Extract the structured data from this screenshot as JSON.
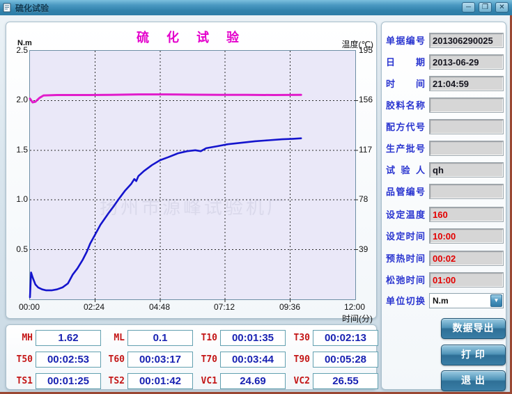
{
  "window": {
    "title": "硫化试验",
    "controls": {
      "minimize": "─",
      "maximize": "❐",
      "close": "✕"
    }
  },
  "chart": {
    "title": "硫 化 试 验",
    "left_axis_unit": "N.m",
    "right_axis_unit": "温度(℃)",
    "x_axis_title": "时间(分)",
    "watermark": "扬州市源峰试验机厂"
  },
  "chart_data": {
    "type": "line",
    "title": "硫化试验",
    "x_range": [
      0,
      12
    ],
    "left_ylim": [
      0,
      2.5
    ],
    "right_ylim": [
      0,
      195
    ],
    "x_ticks": [
      "00:00",
      "02:24",
      "04:48",
      "07:12",
      "09:36",
      "12:00"
    ],
    "left_ticks": [
      "2.5",
      "2.0",
      "1.5",
      "1.0",
      "0.5"
    ],
    "right_ticks": [
      "195",
      "156",
      "117",
      "78",
      "39"
    ],
    "grid": {
      "vertical_minutes": [
        2.4,
        4.8,
        7.2,
        9.6
      ],
      "horizontal_left_values": [
        2.0,
        1.5,
        1.0,
        0.5
      ]
    },
    "series": [
      {
        "name": "torque",
        "unit": "N.m",
        "axis": "left",
        "color": "#1414cd",
        "width": 2.6,
        "points": [
          [
            0,
            0.02
          ],
          [
            0.04,
            0.27
          ],
          [
            0.1,
            0.22
          ],
          [
            0.2,
            0.15
          ],
          [
            0.3,
            0.12
          ],
          [
            0.45,
            0.1
          ],
          [
            0.6,
            0.09
          ],
          [
            0.8,
            0.09
          ],
          [
            1.0,
            0.1
          ],
          [
            1.2,
            0.12
          ],
          [
            1.4,
            0.16
          ],
          [
            1.58,
            0.25
          ],
          [
            1.75,
            0.31
          ],
          [
            1.95,
            0.4
          ],
          [
            2.1,
            0.48
          ],
          [
            2.22,
            0.56
          ],
          [
            2.4,
            0.65
          ],
          [
            2.6,
            0.75
          ],
          [
            2.88,
            0.86
          ],
          [
            3.1,
            0.94
          ],
          [
            3.28,
            1.01
          ],
          [
            3.5,
            1.09
          ],
          [
            3.73,
            1.16
          ],
          [
            3.85,
            1.21
          ],
          [
            3.92,
            1.19
          ],
          [
            4.0,
            1.24
          ],
          [
            4.2,
            1.29
          ],
          [
            4.5,
            1.35
          ],
          [
            4.8,
            1.4
          ],
          [
            5.1,
            1.43
          ],
          [
            5.47,
            1.47
          ],
          [
            5.8,
            1.49
          ],
          [
            6.1,
            1.5
          ],
          [
            6.3,
            1.49
          ],
          [
            6.5,
            1.52
          ],
          [
            6.9,
            1.54
          ],
          [
            7.3,
            1.56
          ],
          [
            7.8,
            1.575
          ],
          [
            8.3,
            1.59
          ],
          [
            8.8,
            1.6
          ],
          [
            9.3,
            1.61
          ],
          [
            9.7,
            1.615
          ],
          [
            10,
            1.62
          ]
        ]
      },
      {
        "name": "temperature",
        "unit": "℃",
        "axis": "right",
        "color": "#e11ccb",
        "width": 3,
        "points": [
          [
            0,
            157.5
          ],
          [
            0.1,
            154.5
          ],
          [
            0.2,
            155
          ],
          [
            0.35,
            158
          ],
          [
            0.5,
            160
          ],
          [
            1,
            160.3
          ],
          [
            2,
            160.3
          ],
          [
            3,
            160.5
          ],
          [
            4,
            160.8
          ],
          [
            5,
            160.8
          ],
          [
            6,
            160.6
          ],
          [
            7,
            160.5
          ],
          [
            8,
            160.4
          ],
          [
            9,
            160.3
          ],
          [
            10,
            160.4
          ]
        ]
      }
    ]
  },
  "form": {
    "rows": [
      {
        "label": "单据编号",
        "value": "201306290025"
      },
      {
        "label": "日期",
        "value": "2013-06-29"
      },
      {
        "label": "时间",
        "value": "21:04:59"
      },
      {
        "label": "胶料名称",
        "value": ""
      },
      {
        "label": "配方代号",
        "value": ""
      },
      {
        "label": "生产批号",
        "value": ""
      },
      {
        "label": "试验人",
        "value": "qh"
      },
      {
        "label": "品管编号",
        "value": ""
      },
      {
        "label": "设定温度",
        "value": "160"
      },
      {
        "label": "设定时间",
        "value": "10:00"
      },
      {
        "label": "预热时间",
        "value": "00:02"
      },
      {
        "label": "松弛时间",
        "value": "01:00"
      }
    ],
    "unit_switch": {
      "label": "单位切换",
      "value": "N.m"
    }
  },
  "buttons": {
    "export": "数据导出",
    "print": "打  印",
    "exit": "退  出"
  },
  "results": {
    "rows": [
      [
        {
          "label": "MH",
          "value": "1.62"
        },
        {
          "label": "ML",
          "value": "0.1"
        },
        {
          "label": "T10",
          "value": "00:01:35"
        },
        {
          "label": "T30",
          "value": "00:02:13"
        }
      ],
      [
        {
          "label": "T50",
          "value": "00:02:53"
        },
        {
          "label": "T60",
          "value": "00:03:17"
        },
        {
          "label": "T70",
          "value": "00:03:44"
        },
        {
          "label": "T90",
          "value": "00:05:28"
        }
      ],
      [
        {
          "label": "TS1",
          "value": "00:01:25"
        },
        {
          "label": "TS2",
          "value": "00:01:42"
        },
        {
          "label": "VC1",
          "value": "24.69"
        },
        {
          "label": "VC2",
          "value": "26.55"
        }
      ]
    ]
  }
}
